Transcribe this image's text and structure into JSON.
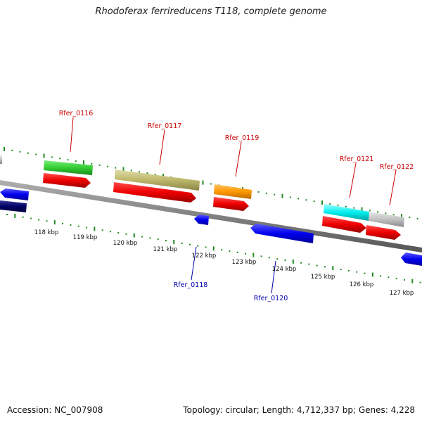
{
  "title": "Rhodoferax ferrireducens T118, complete genome",
  "footer": {
    "accession": "Accession: NC_007908",
    "topology": "Topology: circular; Length: 4,712,337 bp; Genes: 4,228"
  },
  "gene_labels": [
    {
      "name": "Rfer_0116",
      "color": "#cc0000"
    },
    {
      "name": "Rfer_0117",
      "color": "#cc0000"
    },
    {
      "name": "Rfer_0118",
      "color": "#0000aa"
    },
    {
      "name": "Rfer_0119",
      "color": "#cc0000"
    },
    {
      "name": "Rfer_0120",
      "color": "#0000aa"
    },
    {
      "name": "Rfer_0121",
      "color": "#cc0000"
    },
    {
      "name": "Rfer_0122",
      "color": "#cc0000"
    }
  ],
  "kbp_ticks": [
    "118 kbp",
    "119 kbp",
    "120 kbp",
    "121 kbp",
    "122 kbp",
    "123 kbp",
    "124 kbp",
    "125 kbp",
    "126 kbp",
    "127 kbp"
  ],
  "colors": {
    "forward_strand": "#ff0000",
    "reverse_strand": "#0000ee",
    "backbone": "#808080",
    "tick_marks": "#228b22"
  }
}
